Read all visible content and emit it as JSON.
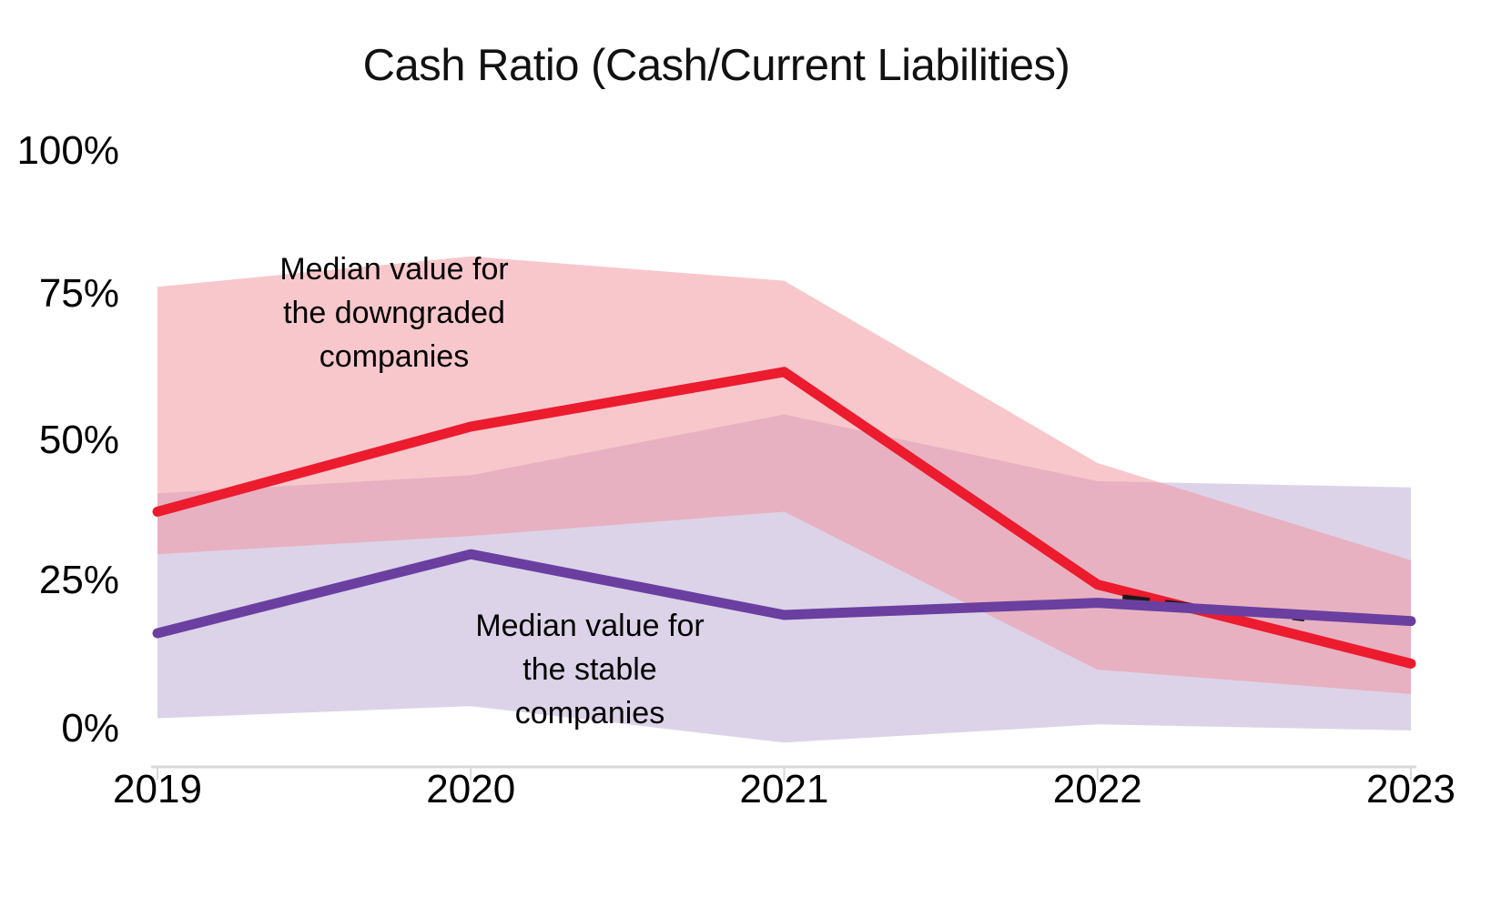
{
  "chart_data": {
    "type": "line",
    "title": "Cash Ratio (Cash/Current Liabilities)",
    "categories": [
      "2019",
      "2020",
      "2021",
      "2022",
      "2023"
    ],
    "xlabel": "",
    "ylabel": "",
    "ylim": [
      0,
      100
    ],
    "grid": false,
    "legend_position": "none (series labelled by on-chart annotations)",
    "y_tick_values": [
      0,
      25,
      50,
      75,
      100
    ],
    "y_tick_labels": [
      "0%",
      "25%",
      "50%",
      "75%",
      "100%"
    ],
    "axis_color": "#D9D9D9",
    "text_color": "#000000",
    "series": [
      {
        "name": "Median value for the downgraded companies",
        "type": "line",
        "color": "#EC1B2E",
        "values": [
          42,
          56,
          65,
          30,
          17
        ]
      },
      {
        "name": "Median value for the stable companies",
        "type": "line",
        "color": "#6A3FA0",
        "values": [
          22,
          35,
          25,
          27,
          24
        ]
      },
      {
        "name": "Downgraded companies range band",
        "type": "band",
        "color": "rgba(241,143,153,0.5)",
        "upper": [
          79,
          84,
          80,
          50,
          34
        ],
        "lower": [
          35,
          38,
          42,
          16,
          12
        ]
      },
      {
        "name": "Stable companies range band",
        "type": "band",
        "color": "rgba(185,167,209,0.5)",
        "upper": [
          45,
          48,
          58,
          47,
          46
        ],
        "lower": [
          8,
          10,
          4,
          7,
          6
        ]
      },
      {
        "name": "Partially hidden black dashed segment",
        "type": "dashed-segment",
        "color": "#1A1A1A",
        "x_category_index": [
          3.08,
          3.66
        ],
        "values": [
          28.0,
          24.3
        ]
      }
    ],
    "annotations": [
      {
        "text": "Median value for\nthe downgraded\ncompanies",
        "target_series": "Median value for the downgraded companies"
      },
      {
        "text": "Median value for\nthe stable\ncompanies",
        "target_series": "Median value for the stable companies"
      }
    ]
  }
}
